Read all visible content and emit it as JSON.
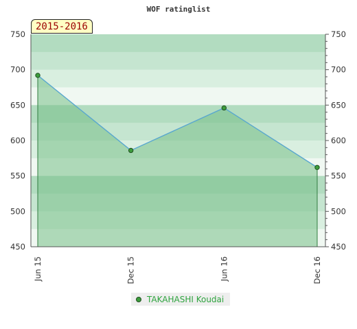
{
  "chart_data": {
    "type": "area",
    "title": "WOF ratinglist",
    "period_label": "2015-2016",
    "x": [
      "Jun 15",
      "Dec 15",
      "Jun 16",
      "Dec 16"
    ],
    "series": [
      {
        "name": "TAKAHASHI Koudai",
        "values": [
          692,
          586,
          646,
          562
        ]
      }
    ],
    "ylim": [
      450,
      750
    ],
    "yticks": [
      450,
      500,
      550,
      600,
      650,
      700,
      750
    ],
    "xlabel": "",
    "ylabel": "",
    "grid": true,
    "legend_position": "bottom",
    "colors": {
      "line": "#59a7cf",
      "area": "#79c089",
      "marker": "#3c9d3c",
      "band_dark": "#b2dcc0",
      "band_light": "#f0f8f2"
    }
  }
}
